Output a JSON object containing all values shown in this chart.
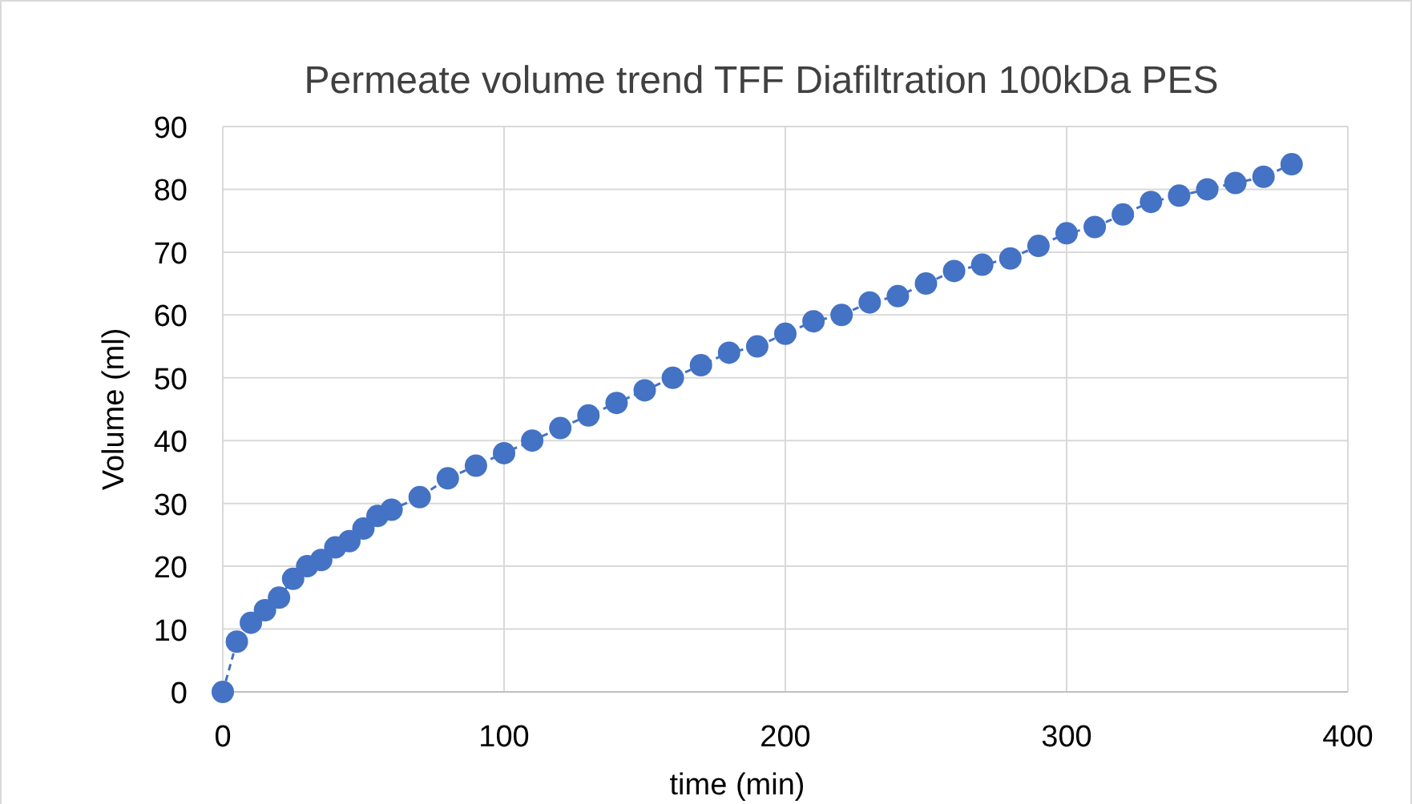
{
  "chart_data": {
    "type": "line",
    "title": "Permeate volume trend TFF Diafiltration 100kDa PES",
    "xlabel": "time (min)",
    "ylabel": "Volume (ml)",
    "x": [
      0,
      5,
      10,
      15,
      20,
      25,
      30,
      35,
      40,
      45,
      50,
      55,
      60,
      70,
      80,
      90,
      100,
      110,
      120,
      130,
      140,
      150,
      160,
      170,
      180,
      190,
      200,
      210,
      220,
      230,
      240,
      250,
      260,
      270,
      280,
      290,
      300,
      310,
      320,
      330,
      340,
      350,
      360,
      370,
      380
    ],
    "series": [
      {
        "color": "#4472c4",
        "values": [
          0,
          8,
          11,
          13,
          15,
          18,
          20,
          21,
          23,
          24,
          26,
          28,
          29,
          31,
          34,
          36,
          38,
          40,
          42,
          44,
          46,
          48,
          50,
          52,
          54,
          55,
          57,
          59,
          60,
          62,
          63,
          65,
          67,
          68,
          69,
          71,
          73,
          74,
          76,
          78,
          79,
          80,
          81,
          82,
          84
        ]
      }
    ],
    "xlim": [
      0,
      400
    ],
    "xticks": [
      0,
      100,
      200,
      300,
      400
    ],
    "ylim": [
      0,
      90
    ],
    "yticks": [
      0,
      10,
      20,
      30,
      40,
      50,
      60,
      70,
      80,
      90
    ],
    "grid": true,
    "marker": "circle",
    "line_style": "dashed"
  }
}
